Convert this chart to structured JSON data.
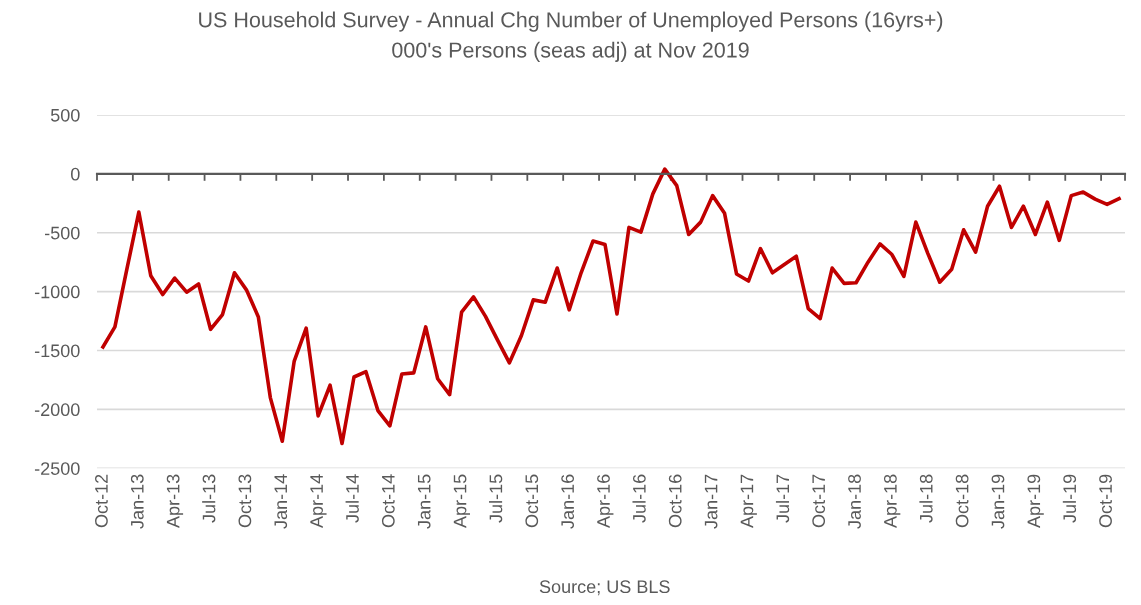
{
  "chart_data": {
    "type": "line",
    "title": "US Household Survey - Annual Chg Number of Unemployed Persons (16yrs+)",
    "subtitle": "000's Persons (seas adj) at Nov 2019",
    "annotations": [
      "Source; US BLS"
    ],
    "categories": [
      "Oct-12",
      null,
      null,
      "Jan-13",
      null,
      null,
      "Apr-13",
      null,
      null,
      "Jul-13",
      null,
      null,
      "Oct-13",
      null,
      null,
      "Jan-14",
      null,
      null,
      "Apr-14",
      null,
      null,
      "Jul-14",
      null,
      null,
      "Oct-14",
      null,
      null,
      "Jan-15",
      null,
      null,
      "Apr-15",
      null,
      null,
      "Jul-15",
      null,
      null,
      "Oct-15",
      null,
      null,
      "Jan-16",
      null,
      null,
      "Apr-16",
      null,
      null,
      "Jul-16",
      null,
      null,
      "Oct-16",
      null,
      null,
      "Jan-17",
      null,
      null,
      "Apr-17",
      null,
      null,
      "Jul-17",
      null,
      null,
      "Oct-17",
      null,
      null,
      "Jan-18",
      null,
      null,
      "Apr-18",
      null,
      null,
      "Jul-18",
      null,
      null,
      "Oct-18",
      null,
      null,
      "Jan-19",
      null,
      null,
      "Apr-19",
      null,
      null,
      "Jul-19",
      null,
      null,
      "Oct-19",
      null
    ],
    "series": [
      {
        "color": "#c00000",
        "values": [
          -1470,
          -1300,
          -810,
          -325,
          -865,
          -1025,
          -885,
          -1005,
          -935,
          -1320,
          -1195,
          -840,
          -985,
          -1215,
          -1900,
          -2270,
          -1590,
          -1310,
          -2055,
          -1795,
          -2290,
          -1725,
          -1680,
          -2010,
          -2140,
          -1700,
          -1690,
          -1300,
          -1740,
          -1875,
          -1175,
          -1045,
          -1210,
          -1410,
          -1605,
          -1375,
          -1070,
          -1090,
          -800,
          -1155,
          -840,
          -570,
          -600,
          -1190,
          -455,
          -495,
          -170,
          40,
          -100,
          -515,
          -410,
          -185,
          -335,
          -850,
          -910,
          -635,
          -840,
          -770,
          -700,
          -1145,
          -1230,
          -800,
          -930,
          -925,
          -750,
          -595,
          -685,
          -870,
          -410,
          -675,
          -920,
          -810,
          -475,
          -665,
          -275,
          -105,
          -455,
          -275,
          -515,
          -240,
          -565,
          -185,
          -155,
          -215,
          -260,
          -210
        ]
      }
    ],
    "ylim": [
      -2500,
      500
    ],
    "yticks": [
      -2500,
      -2000,
      -1500,
      -1000,
      -500,
      0,
      500
    ],
    "grid": "y",
    "legend": false,
    "marker": "none",
    "line_style": "solid"
  }
}
